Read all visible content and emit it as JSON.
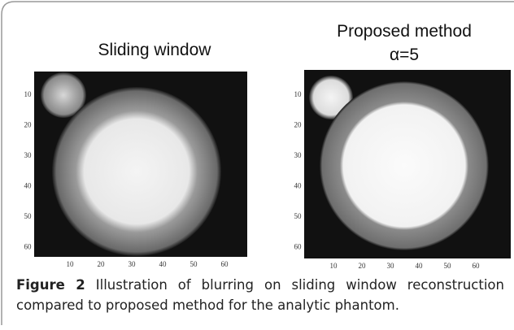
{
  "figure": {
    "panels": [
      {
        "title": [
          "Sliding window"
        ],
        "yticks": [
          "10",
          "20",
          "30",
          "40",
          "50",
          "60"
        ],
        "xticks": [
          "10",
          "20",
          "30",
          "40",
          "50",
          "60"
        ]
      },
      {
        "title": [
          "Proposed method",
          "α=5"
        ],
        "yticks": [
          "10",
          "20",
          "30",
          "40",
          "50",
          "60"
        ],
        "xticks": [
          "10",
          "20",
          "30",
          "40",
          "50",
          "60"
        ]
      }
    ],
    "caption": {
      "label": "Figure 2",
      "text": "Illustration of blurring on sliding window reconstruction compared to proposed method for the analytic phantom."
    }
  }
}
